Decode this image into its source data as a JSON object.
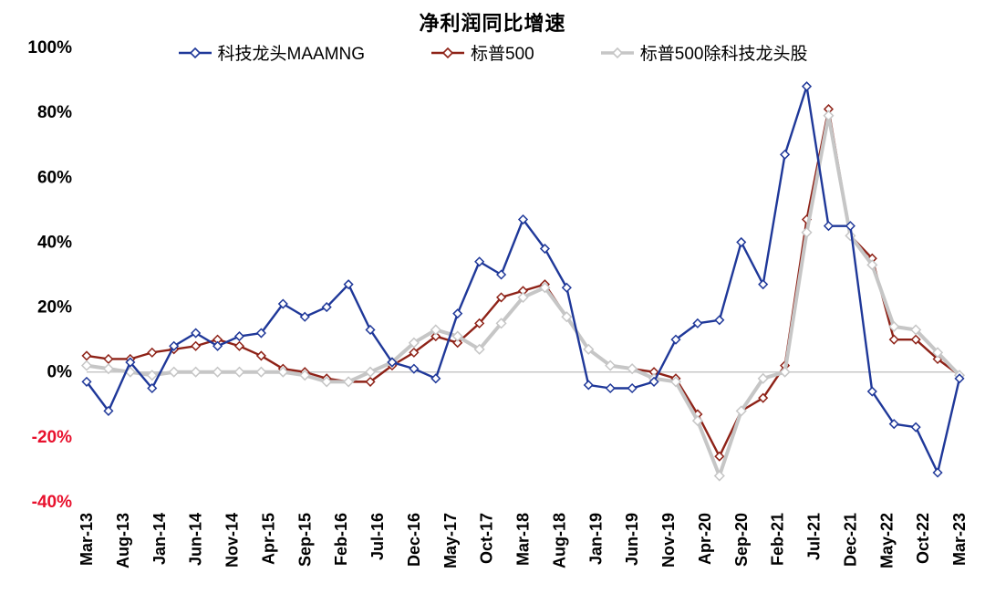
{
  "chart_data": {
    "type": "line",
    "title": "净利润同比增速",
    "legend_position": "top",
    "grid": false,
    "zero_line": true,
    "zero_line_color": "#c8c8c8",
    "ylim": [
      -40,
      100
    ],
    "yticks": [
      100,
      80,
      60,
      40,
      20,
      0,
      -20,
      -40
    ],
    "ytick_suffix": "%",
    "positive_tick_color": "#000000",
    "negative_tick_color": "#e8112d",
    "total_months": 120,
    "points_step_months": 3,
    "x_label_step_months": 5,
    "x_labels": [
      "Mar-13",
      "Aug-13",
      "Jan-14",
      "Jun-14",
      "Nov-14",
      "Apr-15",
      "Sep-15",
      "Feb-16",
      "Jul-16",
      "Dec-16",
      "May-17",
      "Oct-17",
      "Mar-18",
      "Aug-18",
      "Jan-19",
      "Jun-19",
      "Nov-19",
      "Apr-20",
      "Sep-20",
      "Feb-21",
      "Jul-21",
      "Dec-21",
      "May-22",
      "Oct-22",
      "Mar-23"
    ],
    "series": [
      {
        "name": "科技龙头MAAMNG",
        "color": "#1f3899",
        "line_width": 2.4,
        "marker": "open-diamond",
        "values": [
          -3,
          -12,
          3,
          -5,
          8,
          12,
          8,
          11,
          12,
          21,
          17,
          20,
          27,
          13,
          3,
          1,
          -2,
          18,
          34,
          30,
          47,
          38,
          26,
          -4,
          -5,
          -5,
          -3,
          10,
          15,
          16,
          40,
          27,
          67,
          88,
          45,
          45,
          -6,
          -16,
          -17,
          -31,
          -2
        ]
      },
      {
        "name": "标普500",
        "color": "#8e2217",
        "line_width": 2.4,
        "marker": "open-diamond",
        "values": [
          5,
          4,
          4,
          6,
          7,
          8,
          10,
          8,
          5,
          1,
          0,
          -2,
          -3,
          -3,
          2,
          6,
          11,
          9,
          15,
          23,
          25,
          27,
          17,
          7,
          2,
          1,
          0,
          -2,
          -13,
          -26,
          -12,
          -8,
          2,
          47,
          81,
          42,
          35,
          10,
          10,
          4,
          -1
        ]
      },
      {
        "name": "标普500除科技龙头股",
        "color": "#c6c6c6",
        "line_width": 4,
        "marker": "open-diamond",
        "values": [
          2,
          1,
          0,
          -1,
          0,
          0,
          0,
          0,
          0,
          0,
          -1,
          -3,
          -3,
          0,
          3,
          9,
          13,
          11,
          7,
          15,
          23,
          26,
          17,
          7,
          2,
          1,
          -2,
          -3,
          -15,
          -32,
          -12,
          -2,
          0,
          43,
          79,
          42,
          33,
          14,
          13,
          6,
          -1
        ]
      }
    ]
  }
}
